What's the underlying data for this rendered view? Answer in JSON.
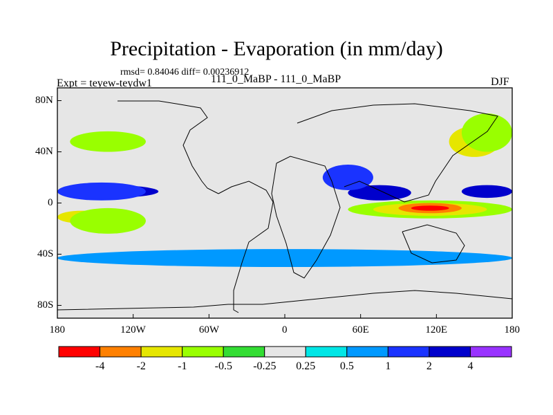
{
  "chart_data": {
    "type": "heatmap",
    "title": "Precipitation - Evaporation (in mm/day)",
    "subtitle": "rmsd= 0.84046  diff= 0.00236912",
    "left_label": "Expt = teyew-teydw1",
    "center_label": "111_0_MaBP - 111_0_MaBP",
    "right_label": "DJF",
    "x_ticks": [
      "180",
      "120W",
      "60W",
      "0",
      "60E",
      "120E",
      "180"
    ],
    "x_tick_values": [
      -180,
      -120,
      -60,
      0,
      60,
      120,
      180
    ],
    "y_ticks": [
      "80N",
      "40N",
      "0",
      "40S",
      "80S"
    ],
    "y_tick_values": [
      80,
      40,
      0,
      -40,
      -80
    ],
    "xlim": [
      -180,
      180
    ],
    "ylim": [
      -90,
      90
    ],
    "colorbar": {
      "labels": [
        "-4",
        "-2",
        "-1",
        "-0.5",
        "-0.25",
        "0.25",
        "0.5",
        "1",
        "2",
        "4"
      ],
      "colors": [
        "#ff0000",
        "#ff8000",
        "#e6e600",
        "#99ff00",
        "#33dd33",
        "#e6e6e6",
        "#00e6e6",
        "#0099ff",
        "#1a33ff",
        "#0000cc",
        "#9933ff"
      ]
    },
    "regions": [
      {
        "band": "2",
        "lon": [
          -180,
          -100
        ],
        "lat": [
          4,
          14
        ]
      },
      {
        "band": "1",
        "lon": [
          -180,
          -110
        ],
        "lat": [
          2,
          16
        ]
      },
      {
        "band": "-1",
        "lon": [
          -180,
          -140
        ],
        "lat": [
          -16,
          -6
        ]
      },
      {
        "band": "-0.5",
        "lon": [
          -170,
          -110
        ],
        "lat": [
          -24,
          -4
        ]
      },
      {
        "band": "2",
        "lon": [
          50,
          100
        ],
        "lat": [
          2,
          14
        ]
      },
      {
        "band": "2",
        "lon": [
          140,
          180
        ],
        "lat": [
          4,
          14
        ]
      },
      {
        "band": "1",
        "lon": [
          30,
          70
        ],
        "lat": [
          10,
          30
        ]
      },
      {
        "band": "-0.5",
        "lon": [
          50,
          180
        ],
        "lat": [
          -12,
          2
        ]
      },
      {
        "band": "-1",
        "lon": [
          70,
          160
        ],
        "lat": [
          -10,
          0
        ]
      },
      {
        "band": "-2",
        "lon": [
          90,
          140
        ],
        "lat": [
          -8,
          0
        ]
      },
      {
        "band": "-4",
        "lon": [
          100,
          130
        ],
        "lat": [
          -6,
          -2
        ]
      },
      {
        "band": "-1",
        "lon": [
          130,
          170
        ],
        "lat": [
          36,
          60
        ]
      },
      {
        "band": "-0.5",
        "lon": [
          140,
          180
        ],
        "lat": [
          40,
          70
        ]
      },
      {
        "band": "-0.5",
        "lon": [
          -170,
          -110
        ],
        "lat": [
          40,
          56
        ]
      },
      {
        "band": "0.5",
        "lon": [
          -180,
          180
        ],
        "lat": [
          -50,
          -36
        ]
      }
    ]
  }
}
